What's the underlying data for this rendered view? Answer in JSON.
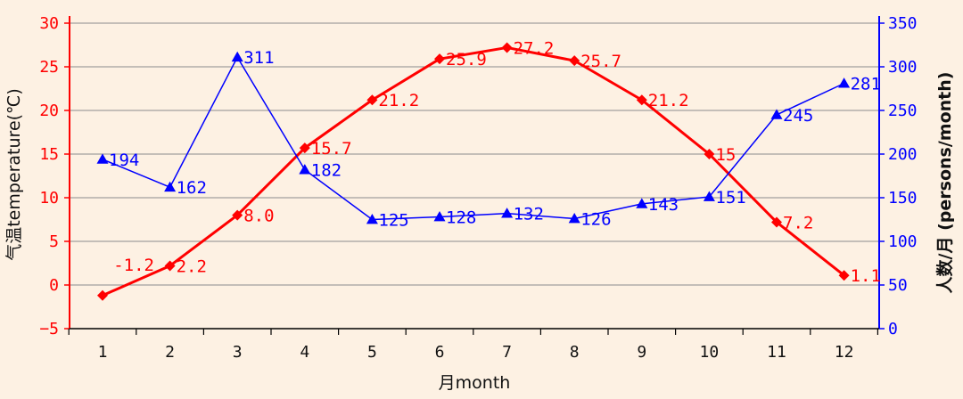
{
  "chart_data": {
    "type": "line",
    "categories": [
      "1",
      "2",
      "3",
      "4",
      "5",
      "6",
      "7",
      "8",
      "9",
      "10",
      "11",
      "12"
    ],
    "xlabel": "月month",
    "y_left_label": "气温temperature(℃)",
    "y_right_label": "人数/月 (persons/month)",
    "y_left_range": [
      -5,
      30
    ],
    "y_left_ticks": [
      "-5",
      "0",
      "5",
      "10",
      "15",
      "20",
      "25",
      "30"
    ],
    "y_right_range": [
      0,
      350
    ],
    "y_right_ticks": [
      "0",
      "50",
      "100",
      "150",
      "200",
      "250",
      "300",
      "350"
    ],
    "grid": "horizontal",
    "series": [
      {
        "axis": "left",
        "color": "#ff0000",
        "marker": "diamond",
        "values": [
          -1.2,
          2.2,
          8.0,
          15.7,
          21.2,
          25.9,
          27.2,
          25.7,
          21.2,
          15,
          7.2,
          1.1
        ],
        "labels": [
          "-1.2",
          "2.2",
          "8.0",
          "15.7",
          "21.2",
          "25.9",
          "27.2",
          "25.7",
          "21.2",
          "15",
          "7.2",
          "1.1"
        ]
      },
      {
        "axis": "right",
        "color": "#0000ff",
        "marker": "triangle",
        "values": [
          194,
          162,
          311,
          182,
          125,
          128,
          132,
          126,
          143,
          151,
          245,
          281
        ],
        "labels": [
          "194",
          "162",
          "311",
          "182",
          "125",
          "128",
          "132",
          "126",
          "143",
          "151",
          "245",
          "281"
        ]
      }
    ]
  },
  "colors": {
    "background": "#fdf1e3",
    "grid": "#8c8c8c",
    "left_axis": "#ff0000",
    "right_axis": "#0000ff",
    "x_axis": "#000000"
  }
}
